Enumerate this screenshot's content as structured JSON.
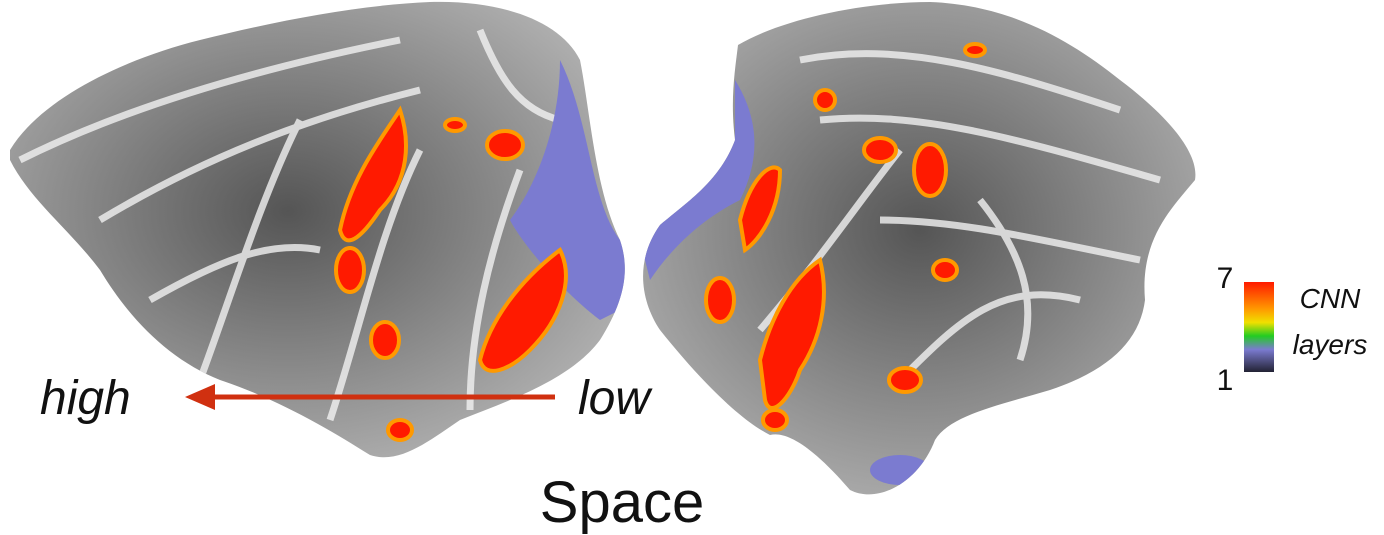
{
  "annotations": {
    "left": "high",
    "right": "low",
    "caption": "Space"
  },
  "colorbar": {
    "max": "7",
    "min": "1",
    "label_top": "CNN",
    "label_bottom": "layers"
  }
}
